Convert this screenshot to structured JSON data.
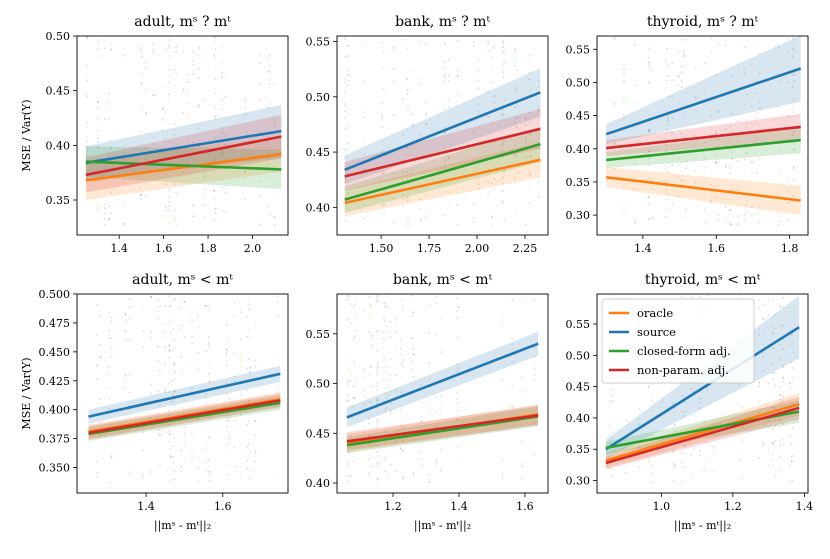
{
  "figure": {
    "ylabel": "MSE / Var(Y)",
    "xlabel": "||mˢ - mᵗ||₂"
  },
  "legend": {
    "items": [
      {
        "label": "oracle",
        "color": "#ff7f0e"
      },
      {
        "label": "source",
        "color": "#1f77b4"
      },
      {
        "label": "closed-form adj.",
        "color": "#2ca02c"
      },
      {
        "label": "non-param. adj.",
        "color": "#d62728"
      }
    ]
  },
  "chart_data": [
    {
      "type": "line",
      "title": "adult, mˢ ? mᵗ",
      "xlim": [
        1.21,
        2.16
      ],
      "ylim": [
        0.318,
        0.5
      ],
      "xticks": [
        1.4,
        1.6,
        1.8,
        2.0
      ],
      "xtick_labels": [
        "1.4",
        "1.6",
        "1.8",
        "2.0"
      ],
      "yticks": [
        0.35,
        0.4,
        0.45,
        0.5
      ],
      "ytick_labels": [
        "0.35",
        "0.40",
        "0.45",
        "0.50"
      ],
      "xlabel": "",
      "ylabel": "MSE / Var(Y)",
      "x": [
        1.25,
        2.13
      ],
      "series": [
        {
          "name": "oracle",
          "values": [
            0.368,
            0.392
          ],
          "band": [
            0.018,
            0.016
          ]
        },
        {
          "name": "source",
          "values": [
            0.384,
            0.413
          ],
          "band": [
            0.015,
            0.024
          ]
        },
        {
          "name": "closed-form adj.",
          "values": [
            0.385,
            0.378
          ],
          "band": [
            0.014,
            0.018
          ]
        },
        {
          "name": "non-param. adj.",
          "values": [
            0.373,
            0.408
          ],
          "band": [
            0.016,
            0.02
          ]
        }
      ]
    },
    {
      "type": "line",
      "title": "bank, mˢ ? mᵗ",
      "xlim": [
        1.27,
        2.37
      ],
      "ylim": [
        0.375,
        0.555
      ],
      "xticks": [
        1.5,
        1.75,
        2.0,
        2.25
      ],
      "xtick_labels": [
        "1.50",
        "1.75",
        "2.00",
        "2.25"
      ],
      "yticks": [
        0.4,
        0.45,
        0.5,
        0.55
      ],
      "ytick_labels": [
        "0.40",
        "0.45",
        "0.50",
        "0.55"
      ],
      "xlabel": "",
      "ylabel": "",
      "x": [
        1.31,
        2.33
      ],
      "series": [
        {
          "name": "oracle",
          "values": [
            0.404,
            0.443
          ],
          "band": [
            0.012,
            0.016
          ]
        },
        {
          "name": "source",
          "values": [
            0.434,
            0.504
          ],
          "band": [
            0.013,
            0.022
          ]
        },
        {
          "name": "closed-form adj.",
          "values": [
            0.407,
            0.457
          ],
          "band": [
            0.012,
            0.016
          ]
        },
        {
          "name": "non-param. adj.",
          "values": [
            0.428,
            0.471
          ],
          "band": [
            0.013,
            0.018
          ]
        }
      ]
    },
    {
      "type": "line",
      "title": "thyroid, mˢ ? mᵗ",
      "xlim": [
        1.275,
        1.85
      ],
      "ylim": [
        0.27,
        0.57
      ],
      "xticks": [
        1.4,
        1.6,
        1.8
      ],
      "xtick_labels": [
        "1.4",
        "1.6",
        "1.8"
      ],
      "yticks": [
        0.3,
        0.35,
        0.4,
        0.45,
        0.5,
        0.55
      ],
      "ytick_labels": [
        "0.30",
        "0.35",
        "0.40",
        "0.45",
        "0.50",
        "0.55"
      ],
      "xlabel": "",
      "ylabel": "",
      "x": [
        1.3,
        1.83
      ],
      "series": [
        {
          "name": "oracle",
          "values": [
            0.357,
            0.322
          ],
          "band": [
            0.015,
            0.022
          ]
        },
        {
          "name": "source",
          "values": [
            0.422,
            0.521
          ],
          "band": [
            0.015,
            0.05
          ]
        },
        {
          "name": "closed-form adj.",
          "values": [
            0.383,
            0.413
          ],
          "band": [
            0.012,
            0.02
          ]
        },
        {
          "name": "non-param. adj.",
          "values": [
            0.401,
            0.433
          ],
          "band": [
            0.012,
            0.02
          ]
        }
      ]
    },
    {
      "type": "line",
      "title": "adult, mˢ < mᵗ",
      "xlim": [
        1.22,
        1.77
      ],
      "ylim": [
        0.328,
        0.5
      ],
      "xticks": [
        1.4,
        1.6
      ],
      "xtick_labels": [
        "1.4",
        "1.6"
      ],
      "yticks": [
        0.35,
        0.375,
        0.4,
        0.425,
        0.45,
        0.475,
        0.5
      ],
      "ytick_labels": [
        "0.350",
        "0.375",
        "0.400",
        "0.425",
        "0.450",
        "0.475",
        "0.500"
      ],
      "xlabel": "||mˢ - mᵗ||₂",
      "ylabel": "MSE / Var(Y)",
      "x": [
        1.25,
        1.75
      ],
      "series": [
        {
          "name": "oracle",
          "values": [
            0.381,
            0.409
          ],
          "band": [
            0.006,
            0.006
          ]
        },
        {
          "name": "source",
          "values": [
            0.394,
            0.431
          ],
          "band": [
            0.006,
            0.007
          ]
        },
        {
          "name": "closed-form adj.",
          "values": [
            0.379,
            0.406
          ],
          "band": [
            0.006,
            0.006
          ]
        },
        {
          "name": "non-param. adj.",
          "values": [
            0.38,
            0.408
          ],
          "band": [
            0.006,
            0.006
          ]
        }
      ]
    },
    {
      "type": "line",
      "title": "bank, mˢ < mᵗ",
      "xlim": [
        1.03,
        1.67
      ],
      "ylim": [
        0.39,
        0.59
      ],
      "xticks": [
        1.2,
        1.4,
        1.6
      ],
      "xtick_labels": [
        "1.2",
        "1.4",
        "1.6"
      ],
      "yticks": [
        0.4,
        0.45,
        0.5,
        0.55
      ],
      "ytick_labels": [
        "0.40",
        "0.45",
        "0.50",
        "0.55"
      ],
      "xlabel": "||mˢ - mᵗ||₂",
      "ylabel": "",
      "x": [
        1.06,
        1.64
      ],
      "series": [
        {
          "name": "oracle",
          "values": [
            0.44,
            0.469
          ],
          "band": [
            0.009,
            0.01
          ]
        },
        {
          "name": "source",
          "values": [
            0.466,
            0.54
          ],
          "band": [
            0.01,
            0.012
          ]
        },
        {
          "name": "closed-form adj.",
          "values": [
            0.438,
            0.467
          ],
          "band": [
            0.008,
            0.01
          ]
        },
        {
          "name": "non-param. adj.",
          "values": [
            0.442,
            0.468
          ],
          "band": [
            0.009,
            0.01
          ]
        }
      ]
    },
    {
      "type": "line",
      "title": "thyroid, mˢ < mᵗ",
      "xlim": [
        0.82,
        1.41
      ],
      "ylim": [
        0.28,
        0.598
      ],
      "xticks": [
        1.0,
        1.2,
        1.4
      ],
      "xtick_labels": [
        "1.0",
        "1.2",
        "1.4"
      ],
      "yticks": [
        0.3,
        0.35,
        0.4,
        0.45,
        0.5,
        0.55
      ],
      "ytick_labels": [
        "0.30",
        "0.35",
        "0.40",
        "0.45",
        "0.50",
        "0.55"
      ],
      "xlabel": "||mˢ - mᵗ||₂",
      "ylabel": "",
      "x": [
        0.845,
        1.385
      ],
      "series": [
        {
          "name": "oracle",
          "values": [
            0.332,
            0.422
          ],
          "band": [
            0.012,
            0.018
          ]
        },
        {
          "name": "source",
          "values": [
            0.35,
            0.545
          ],
          "band": [
            0.015,
            0.05
          ]
        },
        {
          "name": "closed-form adj.",
          "values": [
            0.352,
            0.41
          ],
          "band": [
            0.01,
            0.018
          ]
        },
        {
          "name": "non-param. adj.",
          "values": [
            0.328,
            0.416
          ],
          "band": [
            0.01,
            0.018
          ]
        }
      ]
    }
  ]
}
